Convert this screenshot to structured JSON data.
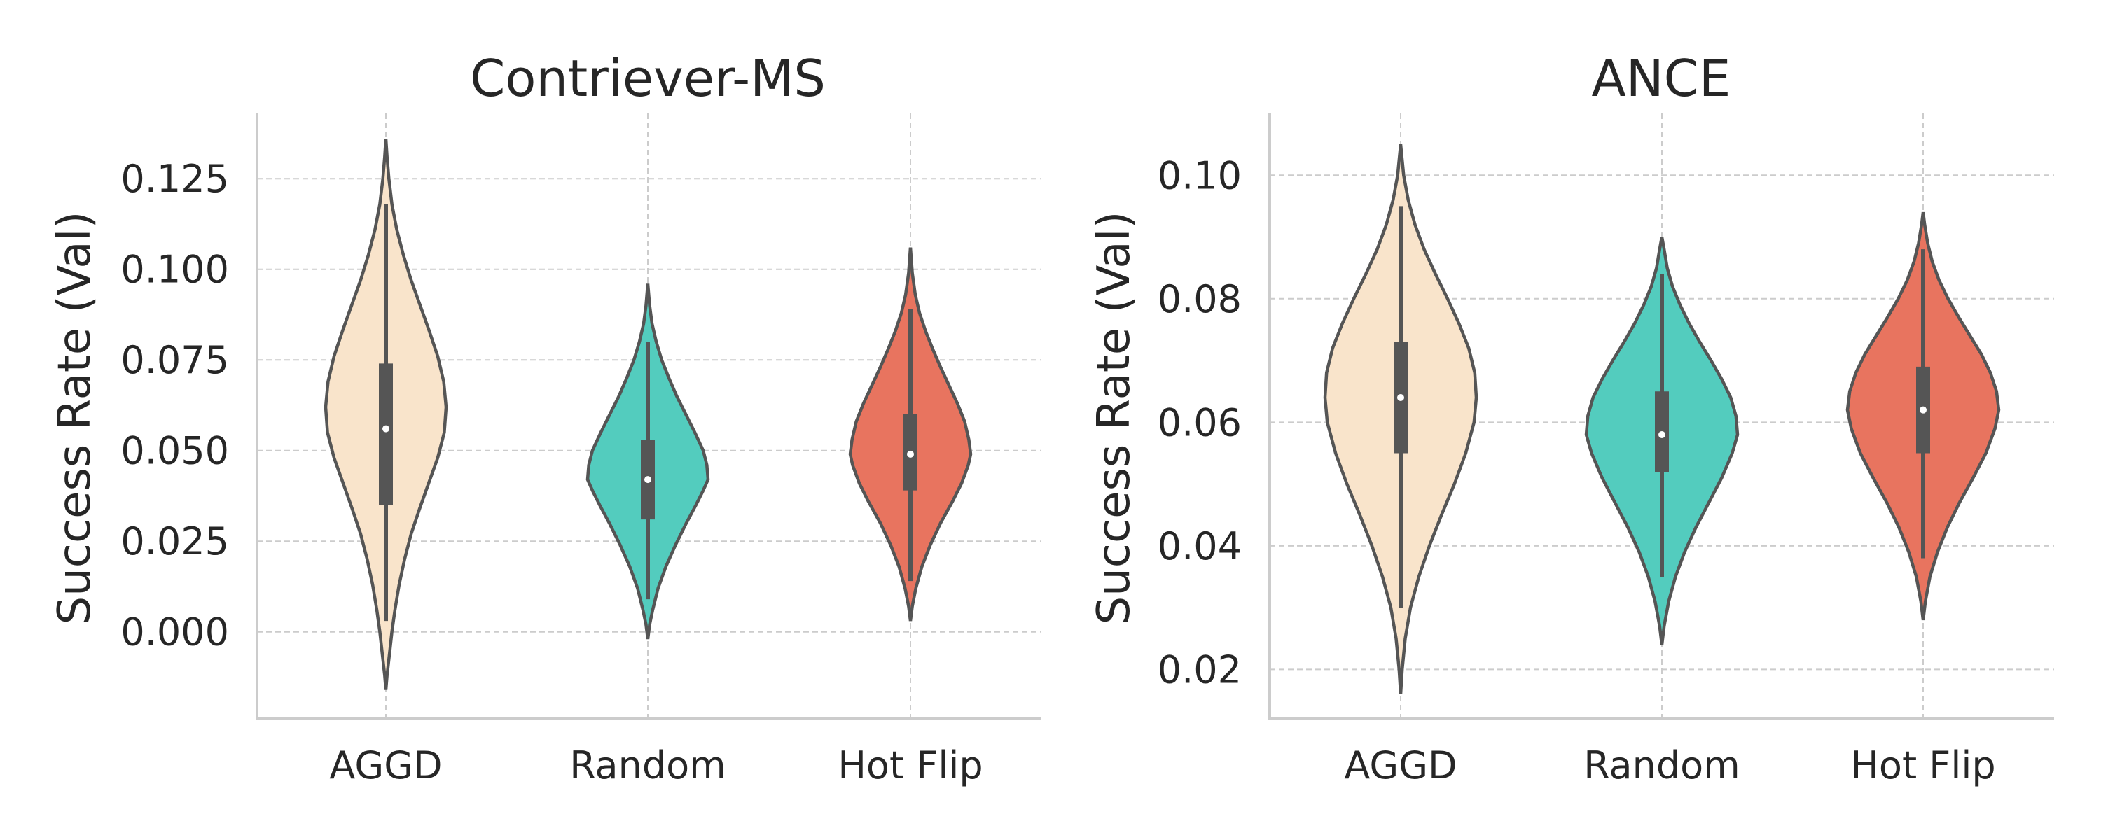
{
  "chart_data": [
    {
      "type": "violin",
      "title": "Contriever-MS",
      "ylabel": "Success Rate (Val)",
      "xlabel": "",
      "categories": [
        "AGGD",
        "Random",
        "Hot Flip"
      ],
      "colors": [
        "#f9e4cb",
        "#53ccbe",
        "#e8745f"
      ],
      "ylim": [
        -0.024,
        0.143
      ],
      "yticks": [
        0.0,
        0.025,
        0.05,
        0.075,
        0.1,
        0.125
      ],
      "ytick_labels": [
        "0.000",
        "0.025",
        "0.050",
        "0.075",
        "0.100",
        "0.125"
      ],
      "grid": true,
      "series": [
        {
          "category": "AGGD",
          "min": -0.016,
          "max": 0.136,
          "whisker_low": 0.003,
          "whisker_high": 0.118,
          "q1": 0.035,
          "median": 0.056,
          "q3": 0.074,
          "density": [
            [
              -0.016,
              0.0
            ],
            [
              -0.012,
              0.02
            ],
            [
              -0.006,
              0.06
            ],
            [
              0.0,
              0.1
            ],
            [
              0.006,
              0.15
            ],
            [
              0.013,
              0.22
            ],
            [
              0.02,
              0.31
            ],
            [
              0.027,
              0.42
            ],
            [
              0.034,
              0.56
            ],
            [
              0.041,
              0.71
            ],
            [
              0.048,
              0.86
            ],
            [
              0.055,
              0.97
            ],
            [
              0.062,
              1.0
            ],
            [
              0.069,
              0.96
            ],
            [
              0.076,
              0.86
            ],
            [
              0.083,
              0.72
            ],
            [
              0.09,
              0.57
            ],
            [
              0.097,
              0.42
            ],
            [
              0.104,
              0.29
            ],
            [
              0.111,
              0.18
            ],
            [
              0.118,
              0.1
            ],
            [
              0.125,
              0.05
            ],
            [
              0.131,
              0.02
            ],
            [
              0.136,
              0.0
            ]
          ]
        },
        {
          "category": "Random",
          "min": -0.002,
          "max": 0.096,
          "whisker_low": 0.009,
          "whisker_high": 0.08,
          "q1": 0.031,
          "median": 0.042,
          "q3": 0.053,
          "density": [
            [
              -0.002,
              0.0
            ],
            [
              0.002,
              0.03
            ],
            [
              0.006,
              0.08
            ],
            [
              0.012,
              0.17
            ],
            [
              0.018,
              0.3
            ],
            [
              0.024,
              0.46
            ],
            [
              0.03,
              0.64
            ],
            [
              0.035,
              0.8
            ],
            [
              0.039,
              0.92
            ],
            [
              0.042,
              1.0
            ],
            [
              0.046,
              0.98
            ],
            [
              0.05,
              0.92
            ],
            [
              0.055,
              0.78
            ],
            [
              0.06,
              0.63
            ],
            [
              0.065,
              0.48
            ],
            [
              0.07,
              0.35
            ],
            [
              0.075,
              0.23
            ],
            [
              0.08,
              0.14
            ],
            [
              0.085,
              0.07
            ],
            [
              0.09,
              0.03
            ],
            [
              0.096,
              0.0
            ]
          ]
        },
        {
          "category": "Hot Flip",
          "min": 0.003,
          "max": 0.106,
          "whisker_low": 0.014,
          "whisker_high": 0.089,
          "q1": 0.039,
          "median": 0.049,
          "q3": 0.06,
          "density": [
            [
              0.003,
              0.0
            ],
            [
              0.007,
              0.03
            ],
            [
              0.012,
              0.09
            ],
            [
              0.018,
              0.19
            ],
            [
              0.024,
              0.33
            ],
            [
              0.03,
              0.5
            ],
            [
              0.036,
              0.7
            ],
            [
              0.041,
              0.85
            ],
            [
              0.046,
              0.96
            ],
            [
              0.049,
              1.0
            ],
            [
              0.053,
              0.97
            ],
            [
              0.058,
              0.9
            ],
            [
              0.063,
              0.78
            ],
            [
              0.068,
              0.64
            ],
            [
              0.073,
              0.5
            ],
            [
              0.078,
              0.37
            ],
            [
              0.083,
              0.25
            ],
            [
              0.088,
              0.15
            ],
            [
              0.093,
              0.08
            ],
            [
              0.099,
              0.03
            ],
            [
              0.106,
              0.0
            ]
          ]
        }
      ]
    },
    {
      "type": "violin",
      "title": "ANCE",
      "ylabel": "Success Rate (Val)",
      "xlabel": "",
      "categories": [
        "AGGD",
        "Random",
        "Hot Flip"
      ],
      "colors": [
        "#f9e4cb",
        "#53ccbe",
        "#e8745f"
      ],
      "ylim": [
        0.012,
        0.11
      ],
      "yticks": [
        0.02,
        0.04,
        0.06,
        0.08,
        0.1
      ],
      "ytick_labels": [
        "0.02",
        "0.04",
        "0.06",
        "0.08",
        "0.10"
      ],
      "grid": true,
      "series": [
        {
          "category": "AGGD",
          "min": 0.016,
          "max": 0.105,
          "whisker_low": 0.03,
          "whisker_high": 0.095,
          "q1": 0.055,
          "median": 0.064,
          "q3": 0.073,
          "density": [
            [
              0.016,
              0.0
            ],
            [
              0.02,
              0.02
            ],
            [
              0.025,
              0.06
            ],
            [
              0.03,
              0.13
            ],
            [
              0.035,
              0.24
            ],
            [
              0.04,
              0.38
            ],
            [
              0.045,
              0.54
            ],
            [
              0.05,
              0.71
            ],
            [
              0.055,
              0.86
            ],
            [
              0.06,
              0.97
            ],
            [
              0.064,
              1.0
            ],
            [
              0.068,
              0.98
            ],
            [
              0.072,
              0.9
            ],
            [
              0.076,
              0.77
            ],
            [
              0.08,
              0.62
            ],
            [
              0.084,
              0.46
            ],
            [
              0.088,
              0.31
            ],
            [
              0.092,
              0.19
            ],
            [
              0.096,
              0.1
            ],
            [
              0.1,
              0.04
            ],
            [
              0.105,
              0.0
            ]
          ]
        },
        {
          "category": "Random",
          "min": 0.024,
          "max": 0.09,
          "whisker_low": 0.035,
          "whisker_high": 0.084,
          "q1": 0.052,
          "median": 0.058,
          "q3": 0.065,
          "density": [
            [
              0.024,
              0.0
            ],
            [
              0.027,
              0.03
            ],
            [
              0.031,
              0.09
            ],
            [
              0.035,
              0.18
            ],
            [
              0.039,
              0.3
            ],
            [
              0.043,
              0.45
            ],
            [
              0.047,
              0.62
            ],
            [
              0.051,
              0.79
            ],
            [
              0.055,
              0.93
            ],
            [
              0.058,
              1.0
            ],
            [
              0.061,
              0.98
            ],
            [
              0.064,
              0.91
            ],
            [
              0.067,
              0.79
            ],
            [
              0.07,
              0.65
            ],
            [
              0.073,
              0.5
            ],
            [
              0.076,
              0.36
            ],
            [
              0.079,
              0.24
            ],
            [
              0.082,
              0.14
            ],
            [
              0.085,
              0.07
            ],
            [
              0.088,
              0.03
            ],
            [
              0.09,
              0.0
            ]
          ]
        },
        {
          "category": "Hot Flip",
          "min": 0.028,
          "max": 0.094,
          "whisker_low": 0.038,
          "whisker_high": 0.088,
          "q1": 0.055,
          "median": 0.062,
          "q3": 0.069,
          "density": [
            [
              0.028,
              0.0
            ],
            [
              0.031,
              0.03
            ],
            [
              0.035,
              0.09
            ],
            [
              0.039,
              0.19
            ],
            [
              0.043,
              0.32
            ],
            [
              0.047,
              0.48
            ],
            [
              0.051,
              0.66
            ],
            [
              0.055,
              0.83
            ],
            [
              0.059,
              0.95
            ],
            [
              0.062,
              1.0
            ],
            [
              0.065,
              0.97
            ],
            [
              0.068,
              0.89
            ],
            [
              0.071,
              0.77
            ],
            [
              0.074,
              0.62
            ],
            [
              0.077,
              0.47
            ],
            [
              0.08,
              0.33
            ],
            [
              0.083,
              0.21
            ],
            [
              0.086,
              0.12
            ],
            [
              0.089,
              0.06
            ],
            [
              0.092,
              0.02
            ],
            [
              0.094,
              0.0
            ]
          ]
        }
      ]
    }
  ]
}
